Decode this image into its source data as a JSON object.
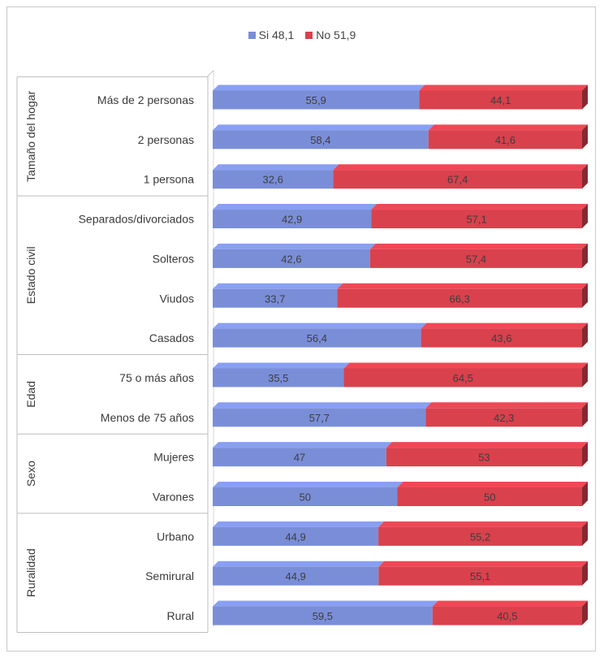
{
  "chart_data": {
    "type": "bar",
    "orientation": "horizontal",
    "stacked": true,
    "stacked_percent": true,
    "legend": [
      {
        "label": "Si 48,1",
        "color": "#7a8ed8"
      },
      {
        "label": "No 51,9",
        "color": "#d9414d"
      }
    ],
    "legend_position": "top-center",
    "xlim": [
      0,
      100
    ],
    "grid": false,
    "groups": [
      {
        "name": "Tamaño del hogar",
        "categories": [
          {
            "label": "Más de 2 personas",
            "si": 55.9,
            "no": 44.1,
            "si_label": "55,9",
            "no_label": "44,1"
          },
          {
            "label": "2 personas",
            "si": 58.4,
            "no": 41.6,
            "si_label": "58,4",
            "no_label": "41,6"
          },
          {
            "label": "1 persona",
            "si": 32.6,
            "no": 67.4,
            "si_label": "32,6",
            "no_label": "67,4"
          }
        ]
      },
      {
        "name": "Estado civil",
        "categories": [
          {
            "label": "Separados/divorciados",
            "si": 42.9,
            "no": 57.1,
            "si_label": "42,9",
            "no_label": "57,1"
          },
          {
            "label": "Solteros",
            "si": 42.6,
            "no": 57.4,
            "si_label": "42,6",
            "no_label": "57,4"
          },
          {
            "label": "Viudos",
            "si": 33.7,
            "no": 66.3,
            "si_label": "33,7",
            "no_label": "66,3"
          },
          {
            "label": "Casados",
            "si": 56.4,
            "no": 43.6,
            "si_label": "56,4",
            "no_label": "43,6"
          }
        ]
      },
      {
        "name": "Edad",
        "categories": [
          {
            "label": "75 o más años",
            "si": 35.5,
            "no": 64.5,
            "si_label": "35,5",
            "no_label": "64,5"
          },
          {
            "label": "Menos de 75 años",
            "si": 57.7,
            "no": 42.3,
            "si_label": "57,7",
            "no_label": "42,3"
          }
        ]
      },
      {
        "name": "Sexo",
        "categories": [
          {
            "label": "Mujeres",
            "si": 47,
            "no": 53,
            "si_label": "47",
            "no_label": "53"
          },
          {
            "label": "Varones",
            "si": 50,
            "no": 50,
            "si_label": "50",
            "no_label": "50"
          }
        ]
      },
      {
        "name": "Ruralidad",
        "categories": [
          {
            "label": "Urbano",
            "si": 44.9,
            "no": 55.2,
            "si_label": "44,9",
            "no_label": "55,2"
          },
          {
            "label": "Semirural",
            "si": 44.9,
            "no": 55.1,
            "si_label": "44,9",
            "no_label": "55,1"
          },
          {
            "label": "Rural",
            "si": 59.5,
            "no": 40.5,
            "si_label": "59,5",
            "no_label": "40,5"
          }
        ]
      }
    ]
  }
}
